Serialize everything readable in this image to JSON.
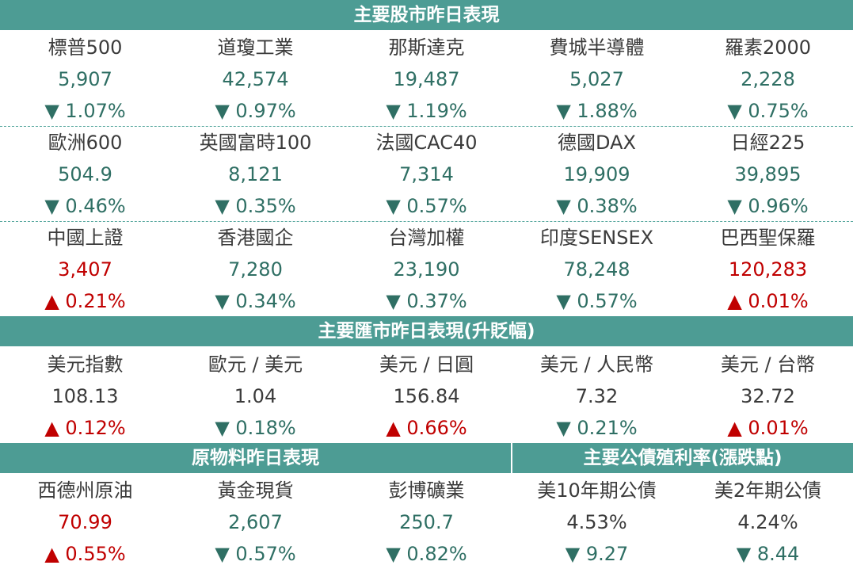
{
  "colors": {
    "header_bg": "#4d9c94",
    "up": "#c00000",
    "down": "#2f6f64",
    "neutral": "#3b3b3b"
  },
  "headers": {
    "stocks": "主要股市昨日表現",
    "fx": "主要匯市昨日表現(升貶幅)",
    "commodities": "原物料昨日表現",
    "bonds": "主要公債殖利率(漲跌點)"
  },
  "stocks_row1": [
    {
      "name": "標普500",
      "value": "5,907",
      "change": "▼  1.07%",
      "dir": "down",
      "value_dir": "down"
    },
    {
      "name": "道瓊工業",
      "value": "42,574",
      "change": "▼  0.97%",
      "dir": "down",
      "value_dir": "down"
    },
    {
      "name": "那斯達克",
      "value": "19,487",
      "change": "▼  1.19%",
      "dir": "down",
      "value_dir": "down"
    },
    {
      "name": "費城半導體",
      "value": "5,027",
      "change": "▼  1.88%",
      "dir": "down",
      "value_dir": "down"
    },
    {
      "name": "羅素2000",
      "value": "2,228",
      "change": "▼  0.75%",
      "dir": "down",
      "value_dir": "down"
    }
  ],
  "stocks_row2": [
    {
      "name": "歐洲600",
      "value": "504.9",
      "change": "▼  0.46%",
      "dir": "down",
      "value_dir": "down"
    },
    {
      "name": "英國富時100",
      "value": "8,121",
      "change": "▼  0.35%",
      "dir": "down",
      "value_dir": "down"
    },
    {
      "name": "法國CAC40",
      "value": "7,314",
      "change": "▼  0.57%",
      "dir": "down",
      "value_dir": "down"
    },
    {
      "name": "德國DAX",
      "value": "19,909",
      "change": "▼  0.38%",
      "dir": "down",
      "value_dir": "down"
    },
    {
      "name": "日經225",
      "value": "39,895",
      "change": "▼  0.96%",
      "dir": "down",
      "value_dir": "down"
    }
  ],
  "stocks_row3": [
    {
      "name": "中國上證",
      "value": "3,407",
      "change": "▲  0.21%",
      "dir": "up",
      "value_dir": "up"
    },
    {
      "name": "香港國企",
      "value": "7,280",
      "change": "▼  0.34%",
      "dir": "down",
      "value_dir": "down"
    },
    {
      "name": "台灣加權",
      "value": "23,190",
      "change": "▼  0.37%",
      "dir": "down",
      "value_dir": "down"
    },
    {
      "name": "印度SENSEX",
      "value": "78,248",
      "change": "▼  0.57%",
      "dir": "down",
      "value_dir": "down"
    },
    {
      "name": "巴西聖保羅",
      "value": "120,283",
      "change": "▲  0.01%",
      "dir": "up",
      "value_dir": "up"
    }
  ],
  "fx": [
    {
      "name": "美元指數",
      "value": "108.13",
      "change": "▲  0.12%",
      "dir": "up",
      "value_dir": "neutral"
    },
    {
      "name": "歐元 / 美元",
      "value": "1.04",
      "change": "▼  0.18%",
      "dir": "down",
      "value_dir": "neutral"
    },
    {
      "name": "美元 / 日圓",
      "value": "156.84",
      "change": "▲  0.66%",
      "dir": "up",
      "value_dir": "neutral"
    },
    {
      "name": "美元 / 人民幣",
      "value": "7.32",
      "change": "▼  0.21%",
      "dir": "down",
      "value_dir": "neutral"
    },
    {
      "name": "美元 / 台幣",
      "value": "32.72",
      "change": "▲  0.01%",
      "dir": "up",
      "value_dir": "neutral"
    }
  ],
  "commodities_bonds": [
    {
      "name": "西德州原油",
      "value": "70.99",
      "change": "▲  0.55%",
      "dir": "up",
      "value_dir": "up"
    },
    {
      "name": "黃金現貨",
      "value": "2,607",
      "change": "▼  0.57%",
      "dir": "down",
      "value_dir": "down"
    },
    {
      "name": "彭博礦業",
      "value": "250.7",
      "change": "▼  0.82%",
      "dir": "down",
      "value_dir": "down"
    },
    {
      "name": "美10年期公債",
      "value": "4.53%",
      "change": "▼  9.27",
      "dir": "down",
      "value_dir": "neutral"
    },
    {
      "name": "美2年期公債",
      "value": "4.24%",
      "change": "▼  8.44",
      "dir": "down",
      "value_dir": "neutral"
    }
  ]
}
